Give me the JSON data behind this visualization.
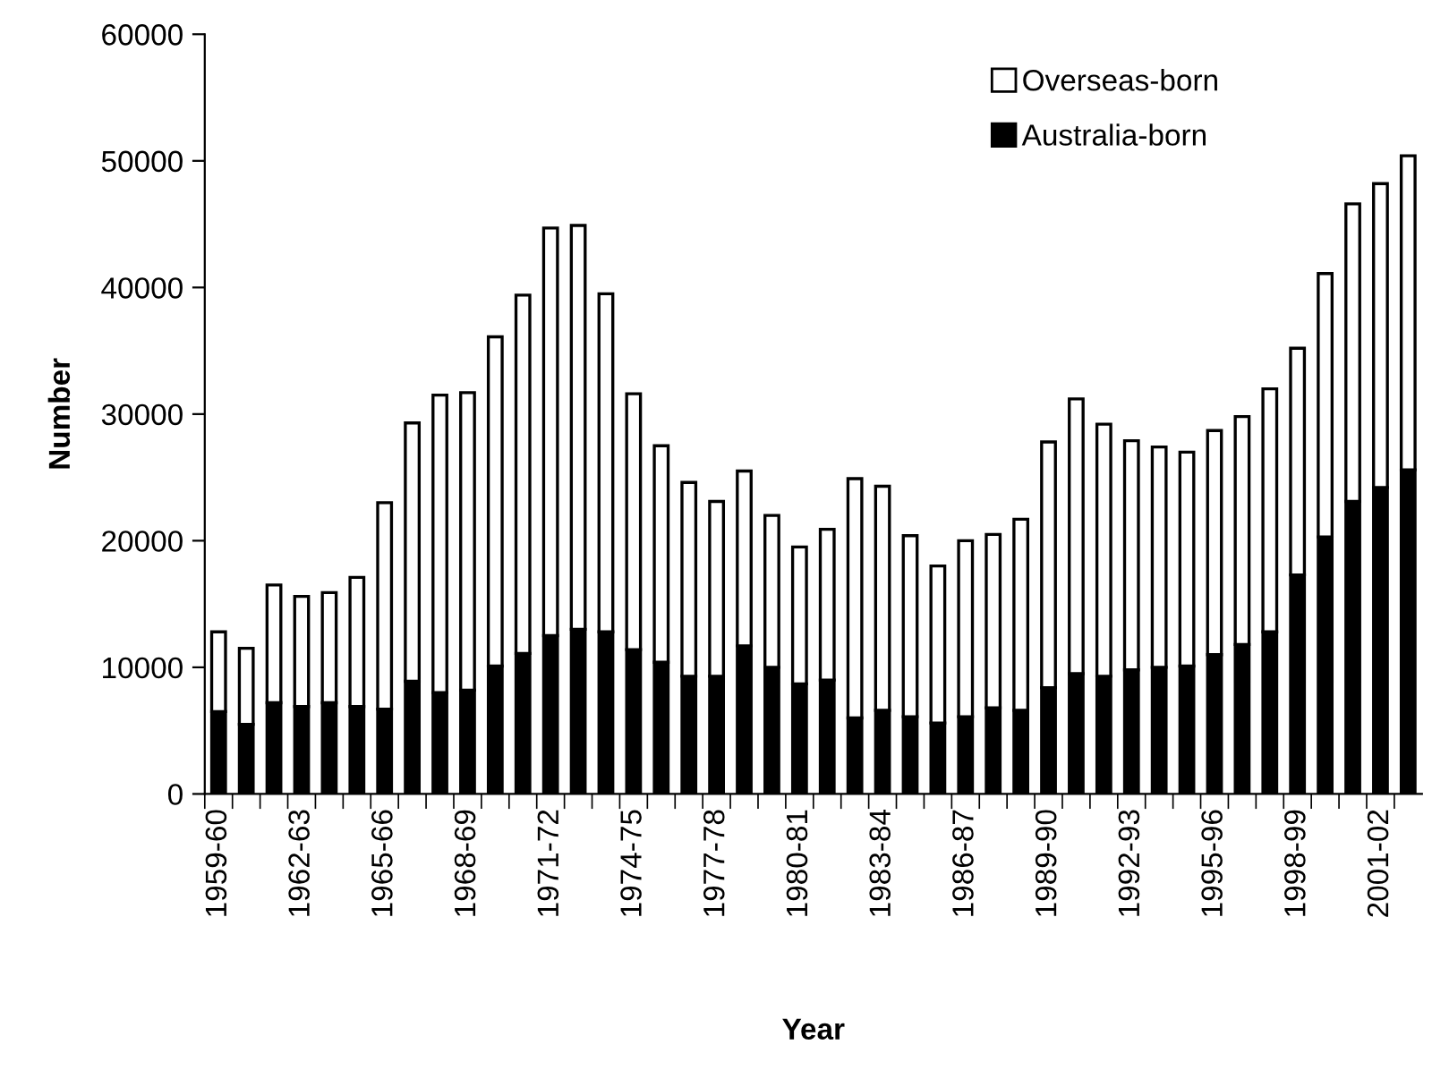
{
  "chart_data": {
    "type": "bar",
    "stacked": true,
    "xlabel": "Year",
    "ylabel": "Number",
    "categories": [
      "1959-60",
      null,
      null,
      "1962-63",
      null,
      null,
      "1965-66",
      null,
      null,
      "1968-69",
      null,
      null,
      "1971-72",
      null,
      null,
      "1974-75",
      null,
      null,
      "1977-78",
      null,
      null,
      "1980-81",
      null,
      null,
      "1983-84",
      null,
      null,
      "1986-87",
      null,
      null,
      "1989-90",
      null,
      null,
      "1992-93",
      null,
      null,
      "1995-96",
      null,
      null,
      "1998-99",
      null,
      null,
      "2001-02",
      null
    ],
    "series": [
      {
        "name": "Australia-born",
        "color": "#000000",
        "values": [
          6500,
          5500,
          7200,
          6900,
          7200,
          6900,
          6700,
          8900,
          8000,
          8200,
          10100,
          11100,
          12500,
          13000,
          12800,
          11400,
          10400,
          9300,
          9300,
          11700,
          10000,
          8700,
          9000,
          6000,
          6600,
          6100,
          5600,
          6100,
          6800,
          6600,
          8400,
          9500,
          9300,
          9800,
          10000,
          10100,
          11000,
          11800,
          12800,
          17300,
          20300,
          23100,
          24200,
          25600
        ]
      },
      {
        "name": "Overseas-born",
        "color": "#ffffff",
        "values": [
          6300,
          6000,
          9300,
          8700,
          8700,
          10200,
          16300,
          20400,
          23500,
          23500,
          26000,
          28300,
          32200,
          31900,
          26700,
          20200,
          17100,
          15300,
          13800,
          13800,
          12000,
          10800,
          11900,
          18900,
          17700,
          14300,
          12400,
          13900,
          13700,
          15100,
          19400,
          21700,
          19900,
          18100,
          17400,
          16900,
          17700,
          18000,
          19200,
          17900,
          20800,
          23500,
          24000,
          24800
        ]
      }
    ],
    "ylim": [
      0,
      60000
    ],
    "yticks": [
      0,
      10000,
      20000,
      30000,
      40000,
      50000,
      60000
    ],
    "legend": "top right"
  }
}
